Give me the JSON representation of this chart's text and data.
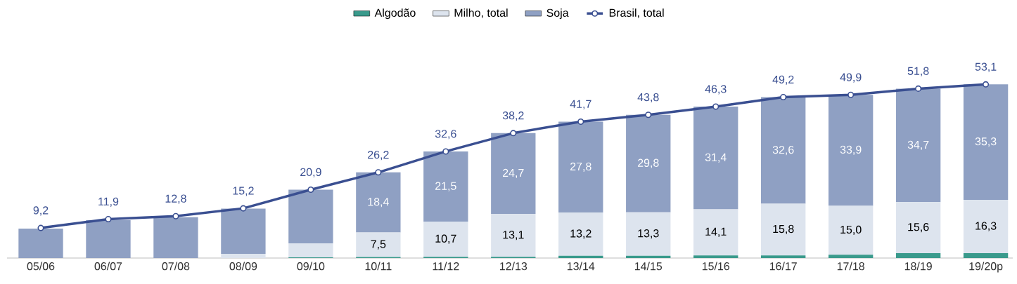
{
  "chart_data": {
    "type": "bar",
    "stacked": true,
    "legend": "top",
    "categories": [
      "05/06",
      "06/07",
      "07/08",
      "08/09",
      "09/10",
      "10/11",
      "11/12",
      "12/13",
      "13/14",
      "14/15",
      "15/16",
      "16/17",
      "17/18",
      "18/19",
      "19/20p"
    ],
    "series": [
      {
        "name": "Algodão",
        "type": "bar",
        "color": "#3a9a8c",
        "values": [
          null,
          null,
          null,
          null,
          0.2,
          0.3,
          0.4,
          0.4,
          0.7,
          0.7,
          0.8,
          0.8,
          1.0,
          1.5,
          1.5
        ],
        "value_labels": [
          null,
          null,
          null,
          null,
          null,
          null,
          null,
          null,
          null,
          null,
          null,
          null,
          null,
          null,
          null
        ]
      },
      {
        "name": "Milho, total",
        "type": "bar",
        "color": "#dde4ee",
        "values": [
          null,
          null,
          null,
          1.3,
          4.3,
          7.5,
          10.7,
          13.1,
          13.2,
          13.3,
          14.1,
          15.8,
          15.0,
          15.6,
          16.3
        ],
        "value_labels": [
          null,
          null,
          null,
          null,
          null,
          "7,5",
          "10,7",
          "13,1",
          "13,2",
          "13,3",
          "14,1",
          "15,8",
          "15,0",
          "15,6",
          "16,3"
        ]
      },
      {
        "name": "Soja",
        "type": "bar",
        "color": "#8fa0c3",
        "values": [
          9.0,
          11.6,
          12.5,
          13.8,
          16.4,
          18.4,
          21.5,
          24.7,
          27.8,
          29.8,
          31.4,
          32.6,
          33.9,
          34.7,
          35.3
        ],
        "value_labels": [
          null,
          null,
          null,
          null,
          null,
          "18,4",
          "21,5",
          "24,7",
          "27,8",
          "29,8",
          "31,4",
          "32,6",
          "33,9",
          "34,7",
          "35,3"
        ]
      },
      {
        "name": "Brasil, total",
        "type": "line",
        "color": "#3a4f91",
        "marker": "circle",
        "values": [
          9.2,
          11.9,
          12.8,
          15.2,
          20.9,
          26.2,
          32.6,
          38.2,
          41.7,
          43.8,
          46.3,
          49.2,
          49.9,
          51.8,
          53.1
        ],
        "value_labels": [
          "9,2",
          "11,9",
          "12,8",
          "15,2",
          "20,9",
          "26,2",
          "32,6",
          "38,2",
          "41,7",
          "43,8",
          "46,3",
          "49,2",
          "49,9",
          "51,8",
          "53,1"
        ]
      }
    ]
  }
}
